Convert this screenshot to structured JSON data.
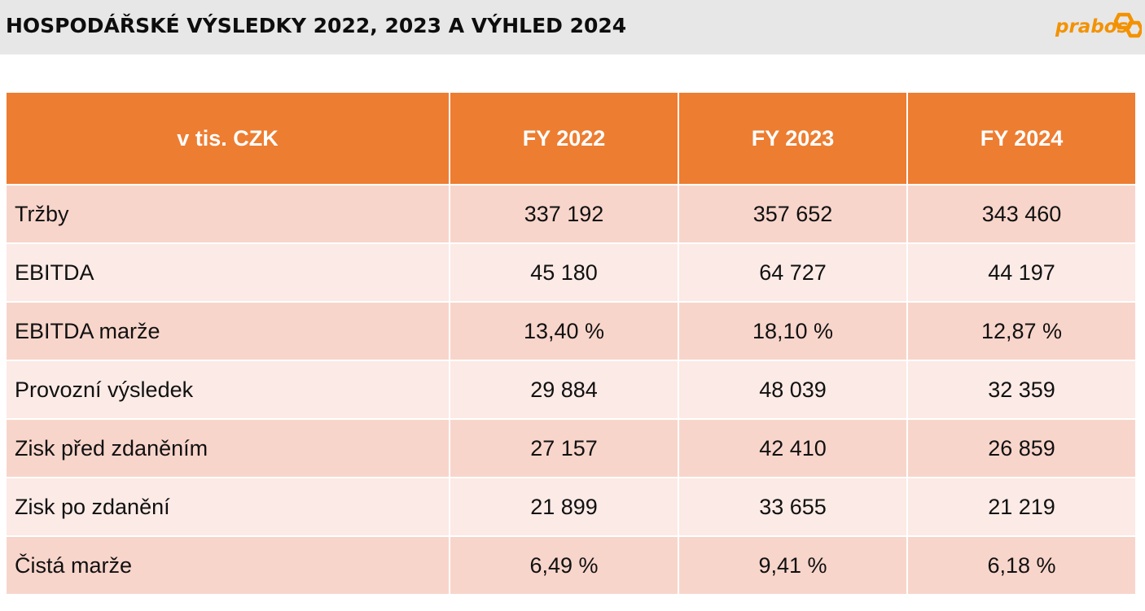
{
  "header": {
    "title": "HOSPODÁŘSKÉ VÝSLEDKY 2022, 2023 A VÝHLED 2024",
    "logo_text": "prabos",
    "logo_color": "#f39200"
  },
  "chart_data": {
    "type": "table",
    "columns": [
      "v tis. CZK",
      "FY 2022",
      "FY 2023",
      "FY 2024"
    ],
    "rows": [
      [
        "Tržby",
        "337 192",
        "357 652",
        "343 460"
      ],
      [
        "EBITDA",
        "45 180",
        "64 727",
        "44 197"
      ],
      [
        "EBITDA marže",
        "13,40 %",
        "18,10 %",
        "12,87 %"
      ],
      [
        "Provozní výsledek",
        "29 884",
        "48 039",
        "32 359"
      ],
      [
        "Zisk před zdaněním",
        "27 157",
        "42 410",
        "26 859"
      ],
      [
        "Zisk po zdanění",
        "21 899",
        "33 655",
        "21 219"
      ],
      [
        "Čistá marže",
        "6,49 %",
        "9,41 %",
        "6,18 %"
      ]
    ],
    "header_color": "#ed7d31",
    "row_colors": [
      "#f8d5cb",
      "#fbeae5"
    ]
  }
}
